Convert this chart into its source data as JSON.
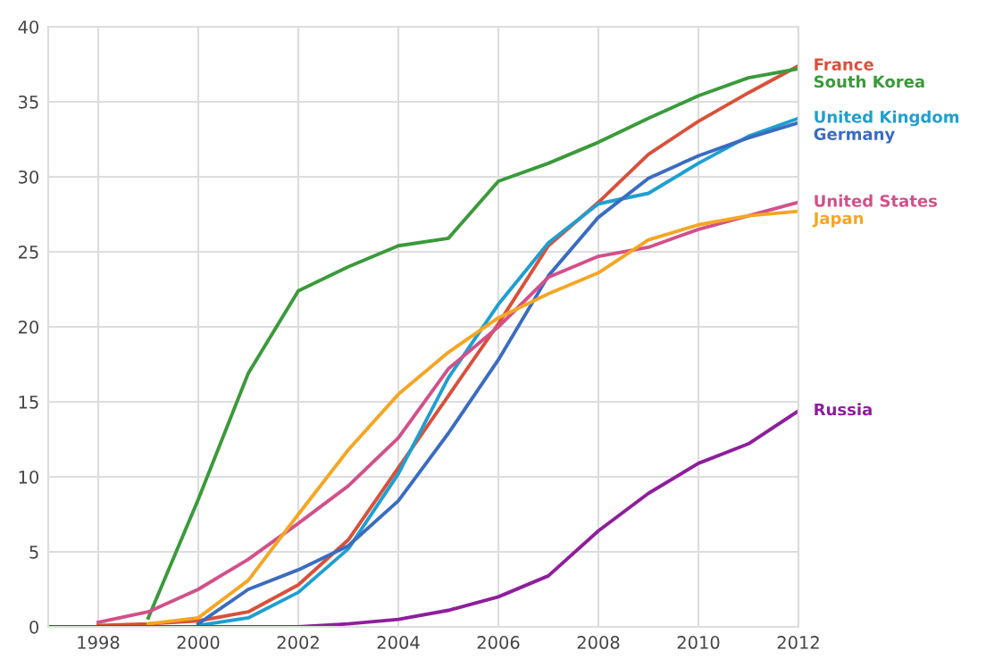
{
  "chart_data": {
    "type": "line",
    "x": [
      1997,
      1998,
      1999,
      2000,
      2001,
      2002,
      2003,
      2004,
      2005,
      2006,
      2007,
      2008,
      2009,
      2010,
      2011,
      2012
    ],
    "series": [
      {
        "name": "France",
        "color": "#d9503a",
        "values": [
          null,
          0.1,
          0.2,
          0.4,
          1.0,
          2.8,
          5.8,
          10.6,
          15.4,
          20.2,
          25.4,
          28.3,
          31.5,
          33.7,
          35.6,
          37.4
        ]
      },
      {
        "name": "South Korea",
        "color": "#3a9a3a",
        "values": [
          null,
          null,
          0.6,
          8.5,
          16.9,
          22.4,
          24.0,
          25.4,
          25.9,
          29.7,
          30.9,
          32.3,
          33.9,
          35.4,
          36.6,
          37.2
        ]
      },
      {
        "name": "United Kingdom",
        "color": "#1f9fd0",
        "values": [
          null,
          null,
          null,
          0.1,
          0.6,
          2.3,
          5.2,
          10.2,
          16.6,
          21.5,
          25.6,
          28.2,
          28.9,
          30.9,
          32.7,
          33.9
        ]
      },
      {
        "name": "Germany",
        "color": "#3a6cc0",
        "values": [
          null,
          null,
          null,
          0.2,
          2.5,
          3.8,
          5.4,
          8.4,
          12.9,
          17.8,
          23.4,
          27.3,
          29.9,
          31.4,
          32.6,
          33.6
        ]
      },
      {
        "name": "United States",
        "color": "#d2508a",
        "values": [
          null,
          0.3,
          1.0,
          2.5,
          4.5,
          6.9,
          9.4,
          12.6,
          17.2,
          20.0,
          23.3,
          24.7,
          25.3,
          26.5,
          27.4,
          28.3
        ]
      },
      {
        "name": "Japan",
        "color": "#f5a623",
        "values": [
          null,
          null,
          0.2,
          0.6,
          3.1,
          7.5,
          11.8,
          15.5,
          18.3,
          20.6,
          22.2,
          23.6,
          25.8,
          26.8,
          27.4,
          27.7
        ]
      },
      {
        "name": "Russia",
        "color": "#8e1e9c",
        "values": [
          0,
          0,
          0,
          0,
          0,
          0,
          0.2,
          0.5,
          1.1,
          2.0,
          3.4,
          6.4,
          8.9,
          10.9,
          12.2,
          14.4
        ]
      }
    ],
    "xlim": [
      1997,
      2012
    ],
    "xticks": [
      1998,
      2000,
      2002,
      2004,
      2006,
      2008,
      2010,
      2012
    ],
    "ylim": [
      0,
      40
    ],
    "yticks": [
      0,
      5,
      10,
      15,
      20,
      25,
      30,
      35,
      40
    ],
    "grid": true,
    "marker": "none",
    "line_style": "solid"
  }
}
